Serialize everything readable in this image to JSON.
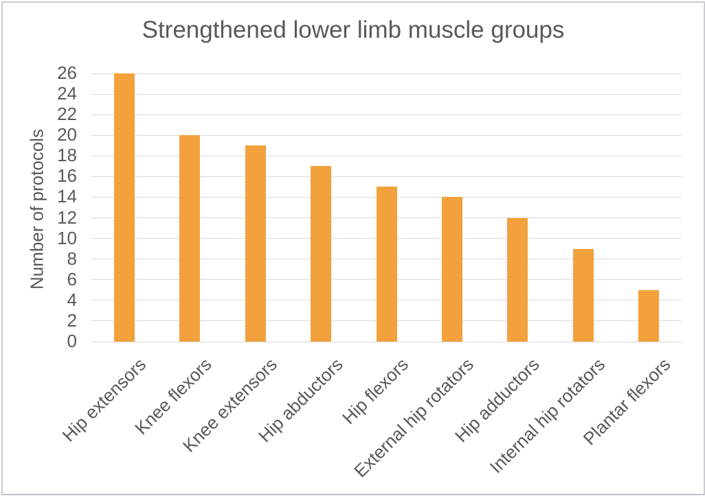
{
  "chart_data": {
    "type": "bar",
    "title": "Strengthened lower limb muscle groups",
    "xlabel": "",
    "ylabel": "Number of protocols",
    "categories": [
      "Hip extensors",
      "Knee flexors",
      "Knee extensors",
      "Hip abductors",
      "Hip flexors",
      "External hip rotators",
      "Hip adductors",
      "Internal hip rotators",
      "Plantar flexors"
    ],
    "values": [
      26,
      20,
      19,
      17,
      15,
      14,
      12,
      9,
      5
    ],
    "ylim": [
      0,
      26
    ],
    "ytick_step": 2,
    "grid": "horizontal",
    "legend_position": "none",
    "x_label_rotation_deg": 45,
    "bar_color": "#F2A13C",
    "text_color": "#595959",
    "gridline_color": "#D9D9D9",
    "frame_border_color": "#C9CCD1"
  }
}
